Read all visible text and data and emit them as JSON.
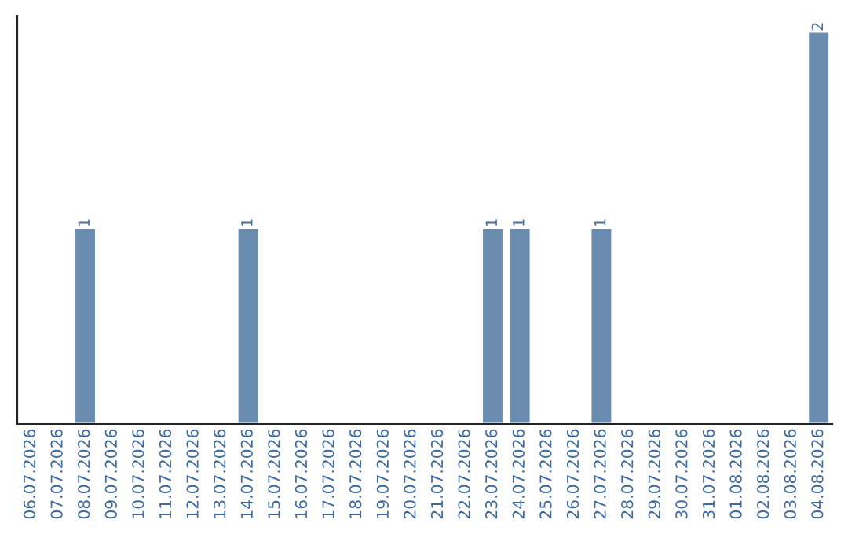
{
  "chart_data": {
    "type": "bar",
    "categories": [
      "06.07.2026",
      "07.07.2026",
      "08.07.2026",
      "09.07.2026",
      "10.07.2026",
      "11.07.2026",
      "12.07.2026",
      "13.07.2026",
      "14.07.2026",
      "15.07.2026",
      "16.07.2026",
      "17.07.2026",
      "18.07.2026",
      "19.07.2026",
      "20.07.2026",
      "21.07.2026",
      "22.07.2026",
      "23.07.2026",
      "24.07.2026",
      "25.07.2026",
      "26.07.2026",
      "27.07.2026",
      "28.07.2026",
      "29.07.2026",
      "30.07.2026",
      "31.07.2026",
      "01.08.2026",
      "02.08.2026",
      "03.08.2026",
      "04.08.2026"
    ],
    "values": [
      0,
      0,
      1,
      0,
      0,
      0,
      0,
      0,
      1,
      0,
      0,
      0,
      0,
      0,
      0,
      0,
      0,
      1,
      1,
      0,
      0,
      1,
      0,
      0,
      0,
      0,
      0,
      0,
      0,
      2
    ],
    "value_labels": [
      null,
      null,
      "1",
      null,
      null,
      null,
      null,
      null,
      "1",
      null,
      null,
      null,
      null,
      null,
      null,
      null,
      null,
      "1",
      "1",
      null,
      null,
      "1",
      null,
      null,
      null,
      null,
      null,
      null,
      null,
      "2"
    ],
    "color": "#6a8caf",
    "ylim": [
      0,
      2.08
    ],
    "grid": false,
    "legend": false,
    "tick_labels": "x"
  }
}
